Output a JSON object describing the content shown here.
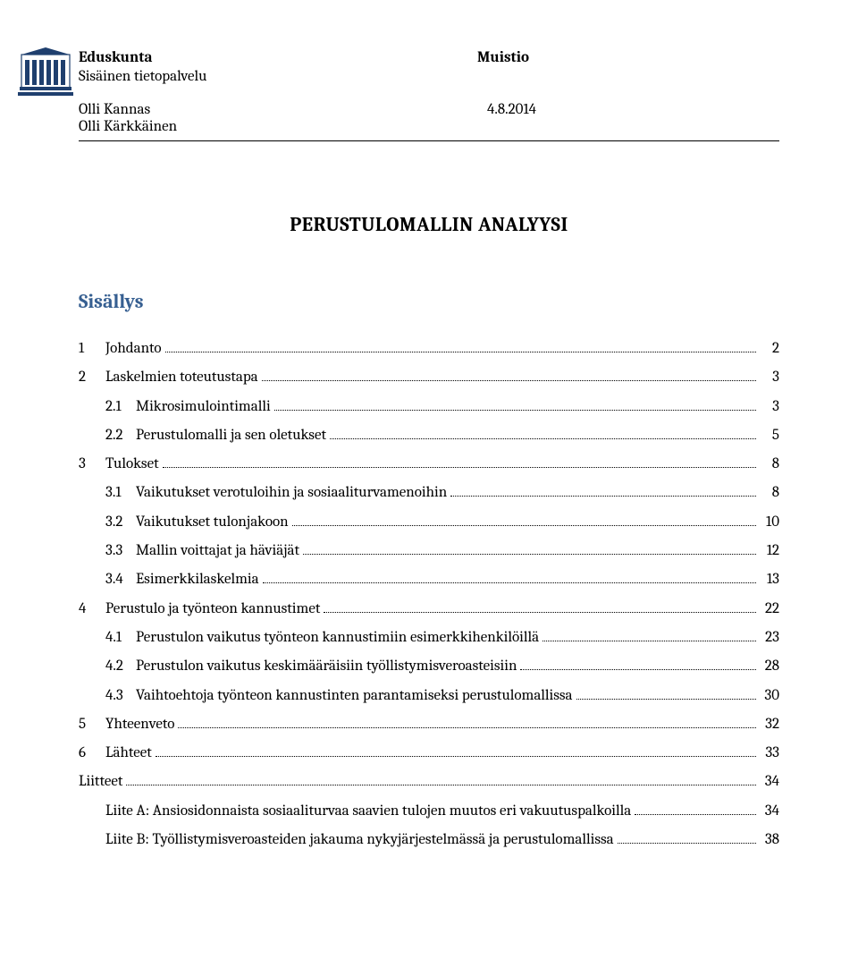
{
  "header": {
    "org": "Eduskunta",
    "doctype": "Muistio",
    "sub": "Sisäinen tietopalvelu",
    "author1": "Olli Kannas",
    "author2": "Olli Kärkkäinen",
    "date": "4.8.2014"
  },
  "title": "PERUSTULOMALLIN ANALYYSI",
  "tocHeading": "Sisällys",
  "colors": {
    "tocHeading": "#365f91",
    "logoBlue": "#1f3f6e",
    "ruleColor": "#000000"
  },
  "toc": [
    {
      "level": 1,
      "num": "1",
      "text": "Johdanto",
      "page": "2"
    },
    {
      "level": 1,
      "num": "2",
      "text": "Laskelmien toteutustapa",
      "page": "3"
    },
    {
      "level": 2,
      "num": "2.1",
      "text": "Mikrosimulointimalli",
      "page": "3"
    },
    {
      "level": 2,
      "num": "2.2",
      "text": "Perustulomalli ja sen oletukset",
      "page": "5"
    },
    {
      "level": 1,
      "num": "3",
      "text": "Tulokset",
      "page": "8"
    },
    {
      "level": 2,
      "num": "3.1",
      "text": "Vaikutukset verotuloihin ja sosiaaliturvamenoihin",
      "page": "8"
    },
    {
      "level": 2,
      "num": "3.2",
      "text": "Vaikutukset tulonjakoon",
      "page": "10"
    },
    {
      "level": 2,
      "num": "3.3",
      "text": "Mallin voittajat ja häviäjät",
      "page": "12"
    },
    {
      "level": 2,
      "num": "3.4",
      "text": "Esimerkkilaskelmia",
      "page": "13"
    },
    {
      "level": 1,
      "num": "4",
      "text": "Perustulo ja työnteon kannustimet",
      "page": "22"
    },
    {
      "level": 2,
      "num": "4.1",
      "text": "Perustulon vaikutus työnteon kannustimiin esimerkkihenkilöillä",
      "page": "23"
    },
    {
      "level": 2,
      "num": "4.2",
      "text": "Perustulon vaikutus keskimääräisiin työllistymisveroasteisiin",
      "page": "28"
    },
    {
      "level": 2,
      "num": "4.3",
      "text": "Vaihtoehtoja työnteon kannustinten parantamiseksi perustulomallissa",
      "page": "30"
    },
    {
      "level": 1,
      "num": "5",
      "text": "Yhteenveto",
      "page": "32"
    },
    {
      "level": 1,
      "num": "6",
      "text": "Lähteet",
      "page": "33"
    },
    {
      "level": 1,
      "num": "",
      "text": "Liitteet",
      "page": "34"
    },
    {
      "level": 2,
      "num": "",
      "text": "Liite A: Ansiosidonnaista sosiaaliturvaa saavien tulojen muutos eri vakuutuspalkoilla",
      "page": "34"
    },
    {
      "level": 2,
      "num": "",
      "text": "Liite B: Työllistymisveroasteiden jakauma nykyjärjestelmässä ja perustulomallissa",
      "page": "38"
    }
  ]
}
